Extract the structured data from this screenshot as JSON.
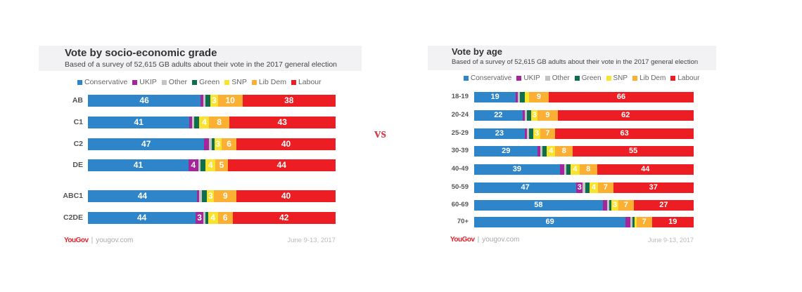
{
  "vs_label": "vs",
  "parties": [
    "Conservative",
    "UKIP",
    "Other",
    "Green",
    "SNP",
    "Lib Dem",
    "Labour"
  ],
  "party_colors": {
    "Conservative": "#2e85c9",
    "UKIP": "#a5259b",
    "Other": "#c4c4c4",
    "Green": "#0f6e4c",
    "SNP": "#f8e42e",
    "Lib Dem": "#fbb034",
    "Labour": "#ec1e24"
  },
  "chart_data": [
    {
      "type": "bar",
      "orientation": "horizontal",
      "stacked": true,
      "title": "Vote by socio-economic grade",
      "subtitle": "Based of a survey of 52,615 GB adults about their vote in the 2017 general election",
      "legend_position": "top",
      "categories": [
        "AB",
        "C1",
        "C2",
        "DE",
        "ABC1",
        "C2DE"
      ],
      "series": [
        {
          "name": "Conservative",
          "values": [
            46,
            41,
            47,
            41,
            44,
            44
          ]
        },
        {
          "name": "UKIP",
          "values": [
            1,
            1,
            2,
            4,
            1,
            3
          ]
        },
        {
          "name": "Other",
          "values": [
            1,
            1,
            1,
            1,
            1,
            1
          ]
        },
        {
          "name": "Green",
          "values": [
            2,
            2,
            1,
            2,
            2,
            1
          ]
        },
        {
          "name": "SNP",
          "values": [
            3,
            4,
            3,
            4,
            3,
            4
          ]
        },
        {
          "name": "Lib Dem",
          "values": [
            10,
            8,
            6,
            5,
            9,
            6
          ]
        },
        {
          "name": "Labour",
          "values": [
            38,
            43,
            40,
            44,
            40,
            42
          ]
        }
      ],
      "logo": "YouGov",
      "source": "yougov.com",
      "date": "June 9-13, 2017"
    },
    {
      "type": "bar",
      "orientation": "horizontal",
      "stacked": true,
      "title": "Vote by age",
      "subtitle": "Based of a survey of 52,615 GB adults about their vote in the 2017 general election",
      "legend_position": "top",
      "categories": [
        "18-19",
        "20-24",
        "25-29",
        "30-39",
        "40-49",
        "50-59",
        "60-69",
        "70+"
      ],
      "series": [
        {
          "name": "Conservative",
          "values": [
            19,
            22,
            23,
            29,
            39,
            47,
            58,
            69
          ]
        },
        {
          "name": "UKIP",
          "values": [
            1,
            1,
            1,
            1,
            2,
            3,
            2,
            2
          ]
        },
        {
          "name": "Other",
          "values": [
            1,
            1,
            1,
            1,
            1,
            1,
            1,
            1
          ]
        },
        {
          "name": "Green",
          "values": [
            2,
            2,
            2,
            2,
            2,
            2,
            1,
            1
          ]
        },
        {
          "name": "SNP",
          "values": [
            2,
            3,
            3,
            4,
            4,
            4,
            3,
            1
          ]
        },
        {
          "name": "Lib Dem",
          "values": [
            9,
            9,
            7,
            8,
            8,
            7,
            7,
            7
          ]
        },
        {
          "name": "Labour",
          "values": [
            66,
            62,
            63,
            55,
            44,
            37,
            27,
            19
          ]
        }
      ],
      "logo": "YouGov",
      "source": "yougov.com",
      "date": "June 9-13, 2017"
    }
  ]
}
